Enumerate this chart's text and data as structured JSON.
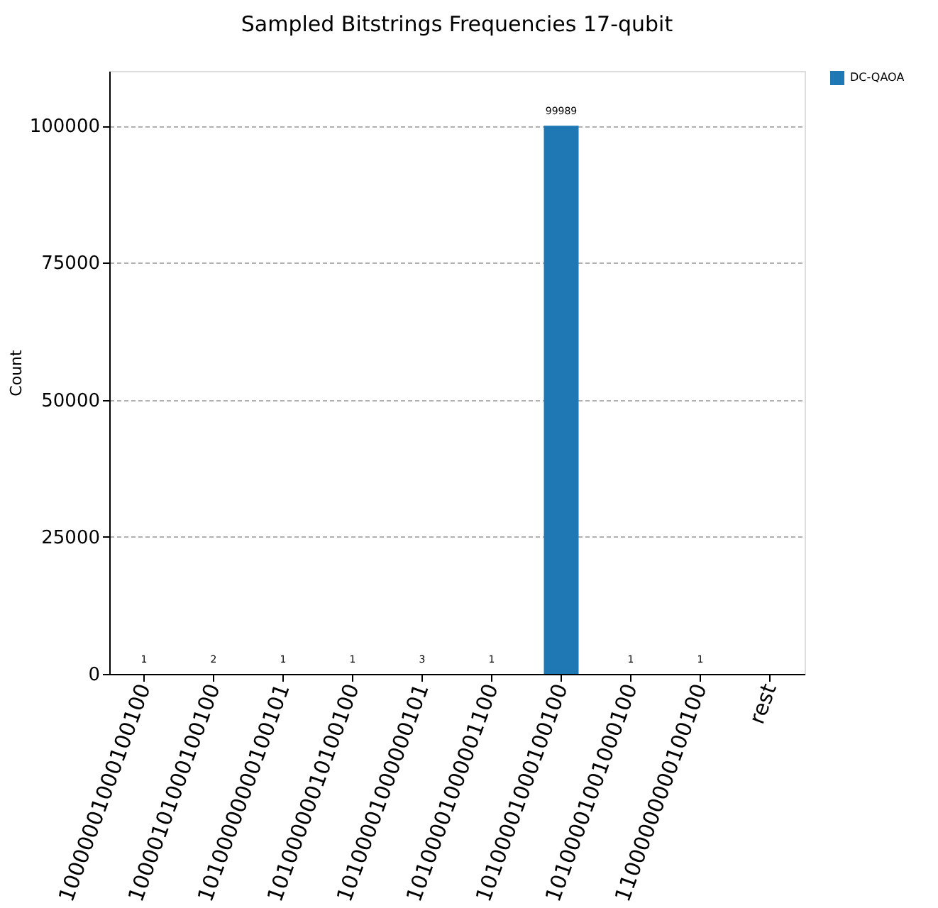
{
  "chart_data": {
    "type": "bar",
    "title": "Sampled Bitstrings Frequencies 17-qubit",
    "ylabel": "Count",
    "categories": [
      "10000001000100100",
      "10000101000100100",
      "10100000000100101",
      "10100000010100100",
      "10100001000000101",
      "10100001000001100",
      "10100001000100100",
      "10100001001000100",
      "11000000000100100",
      "rest"
    ],
    "series": [
      {
        "name": "DC-QAOA",
        "color": "#1f77b4",
        "values": [
          1,
          2,
          1,
          1,
          3,
          1,
          99989,
          1,
          1,
          null
        ]
      }
    ],
    "ylim": [
      0,
      110000
    ],
    "yticks": [
      0,
      25000,
      50000,
      75000,
      100000
    ],
    "grid": "y",
    "data_labels": true,
    "legend": "top right"
  }
}
